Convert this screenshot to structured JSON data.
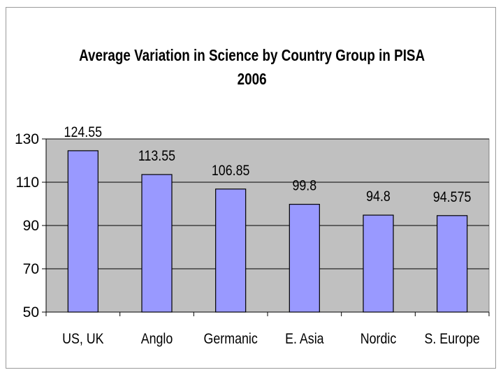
{
  "chart_data": {
    "type": "bar",
    "title": [
      "Average Variation in Science by Country Group in PISA",
      "2006"
    ],
    "categories": [
      "US, UK",
      "Anglo",
      "Germanic",
      "E. Asia",
      "Nordic",
      "S. Europe"
    ],
    "values": [
      124.55,
      113.55,
      106.85,
      99.8,
      94.8,
      94.575
    ],
    "data_labels": [
      "124.55",
      "113.55",
      "106.85",
      "99.8",
      "94.8",
      "94.575"
    ],
    "xlabel": "",
    "ylabel": "",
    "ylim": [
      50,
      130
    ],
    "yticks": [
      50,
      70,
      90,
      110,
      130
    ],
    "grid": true,
    "legend": "none",
    "colors": {
      "bar_fill": "#9999ff",
      "bar_stroke": "#000000",
      "plot_background": "#c0c0c0",
      "gridline": "#000000"
    }
  }
}
